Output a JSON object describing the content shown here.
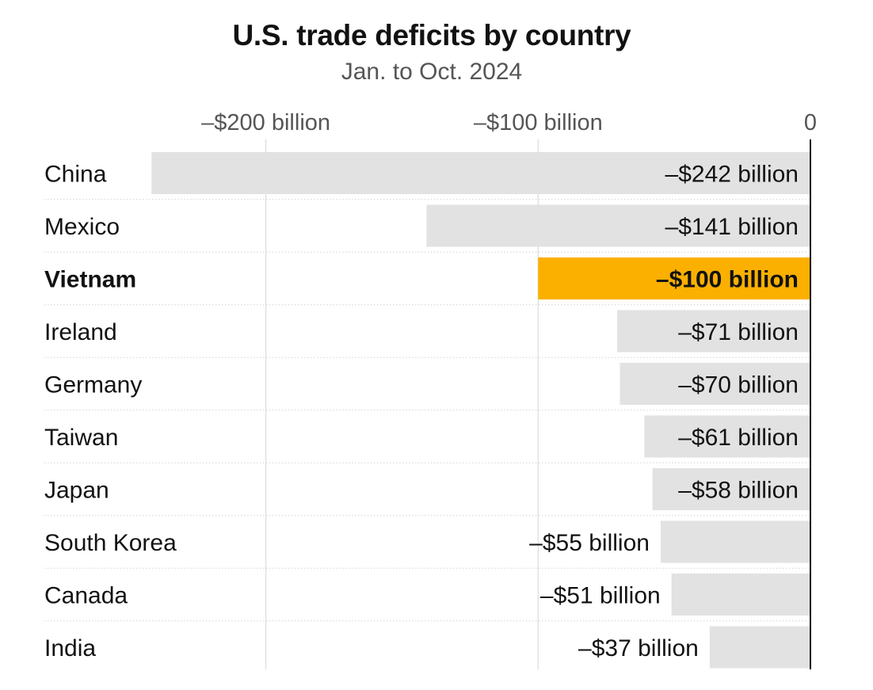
{
  "chart_data": {
    "type": "bar",
    "orientation": "horizontal",
    "title": "U.S. trade deficits by country",
    "subtitle": "Jan. to Oct. 2024",
    "categories": [
      "China",
      "Mexico",
      "Vietnam",
      "Ireland",
      "Germany",
      "Taiwan",
      "Japan",
      "South Korea",
      "Canada",
      "India"
    ],
    "values": [
      -242,
      -141,
      -100,
      -71,
      -70,
      -61,
      -58,
      -55,
      -51,
      -37
    ],
    "value_labels": [
      "–$242 billion",
      "–$141 billion",
      "–$100 billion",
      "–$71 billion",
      "–$70 billion",
      "–$61 billion",
      "–$58 billion",
      "–$55 billion",
      "–$51 billion",
      "–$37 billion"
    ],
    "highlight": "Vietnam",
    "units": "billion USD",
    "xlim": [
      -242,
      0
    ],
    "x_ticks": [
      -200,
      -100,
      0
    ],
    "x_tick_labels": [
      "–$200 billion",
      "–$100 billion",
      "0"
    ],
    "xlabel": "",
    "ylabel": "",
    "colors": {
      "bar": "#e2e2e2",
      "highlight": "#fbb000",
      "gridline": "#dcdcdc",
      "zero_line": "#121212",
      "row_separator": "#d4d4d4"
    }
  }
}
